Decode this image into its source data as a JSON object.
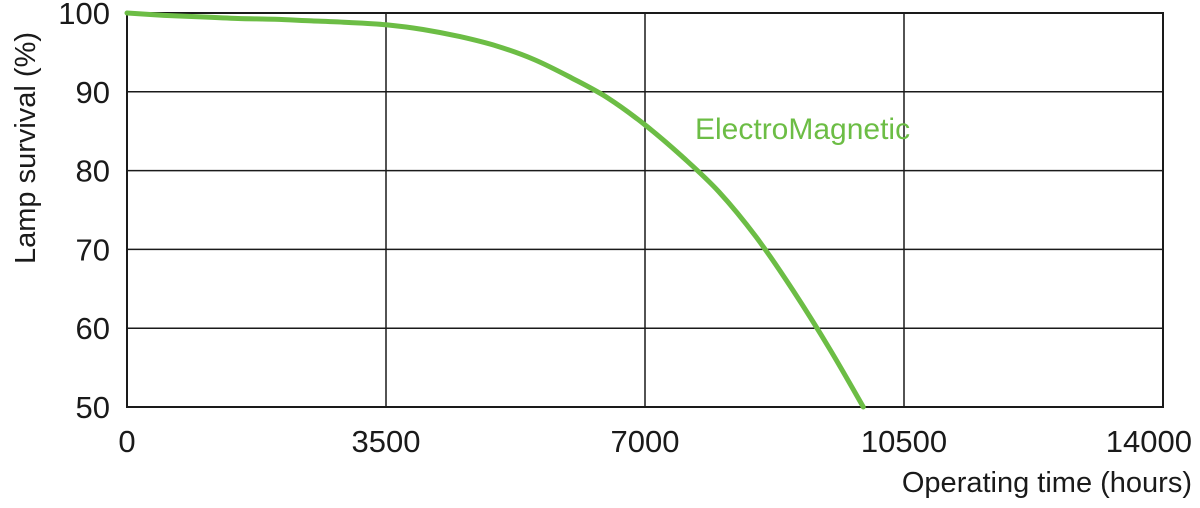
{
  "chart_data": {
    "type": "line",
    "title": "",
    "xlabel": "Operating time (hours)",
    "ylabel": "Lamp survival  (%)",
    "xlim": [
      0,
      14000
    ],
    "ylim": [
      50,
      100
    ],
    "xticks": [
      0,
      3500,
      7000,
      10500,
      14000
    ],
    "yticks": [
      50,
      60,
      70,
      80,
      90,
      100
    ],
    "grid": true,
    "series": [
      {
        "name": "ElectroMagnetic",
        "color": "#6cbd45",
        "x": [
          0,
          500,
          1000,
          1500,
          2000,
          2500,
          3000,
          3500,
          4000,
          4500,
          5000,
          5500,
          6000,
          6500,
          7000,
          7500,
          8000,
          8500,
          9000,
          9500,
          9950
        ],
        "y": [
          100,
          99.7,
          99.5,
          99.3,
          99.2,
          99.0,
          98.8,
          98.5,
          97.9,
          97.0,
          95.8,
          94.1,
          91.8,
          89.2,
          85.8,
          81.8,
          77.3,
          71.6,
          64.8,
          57.3,
          50.0
        ]
      }
    ]
  }
}
